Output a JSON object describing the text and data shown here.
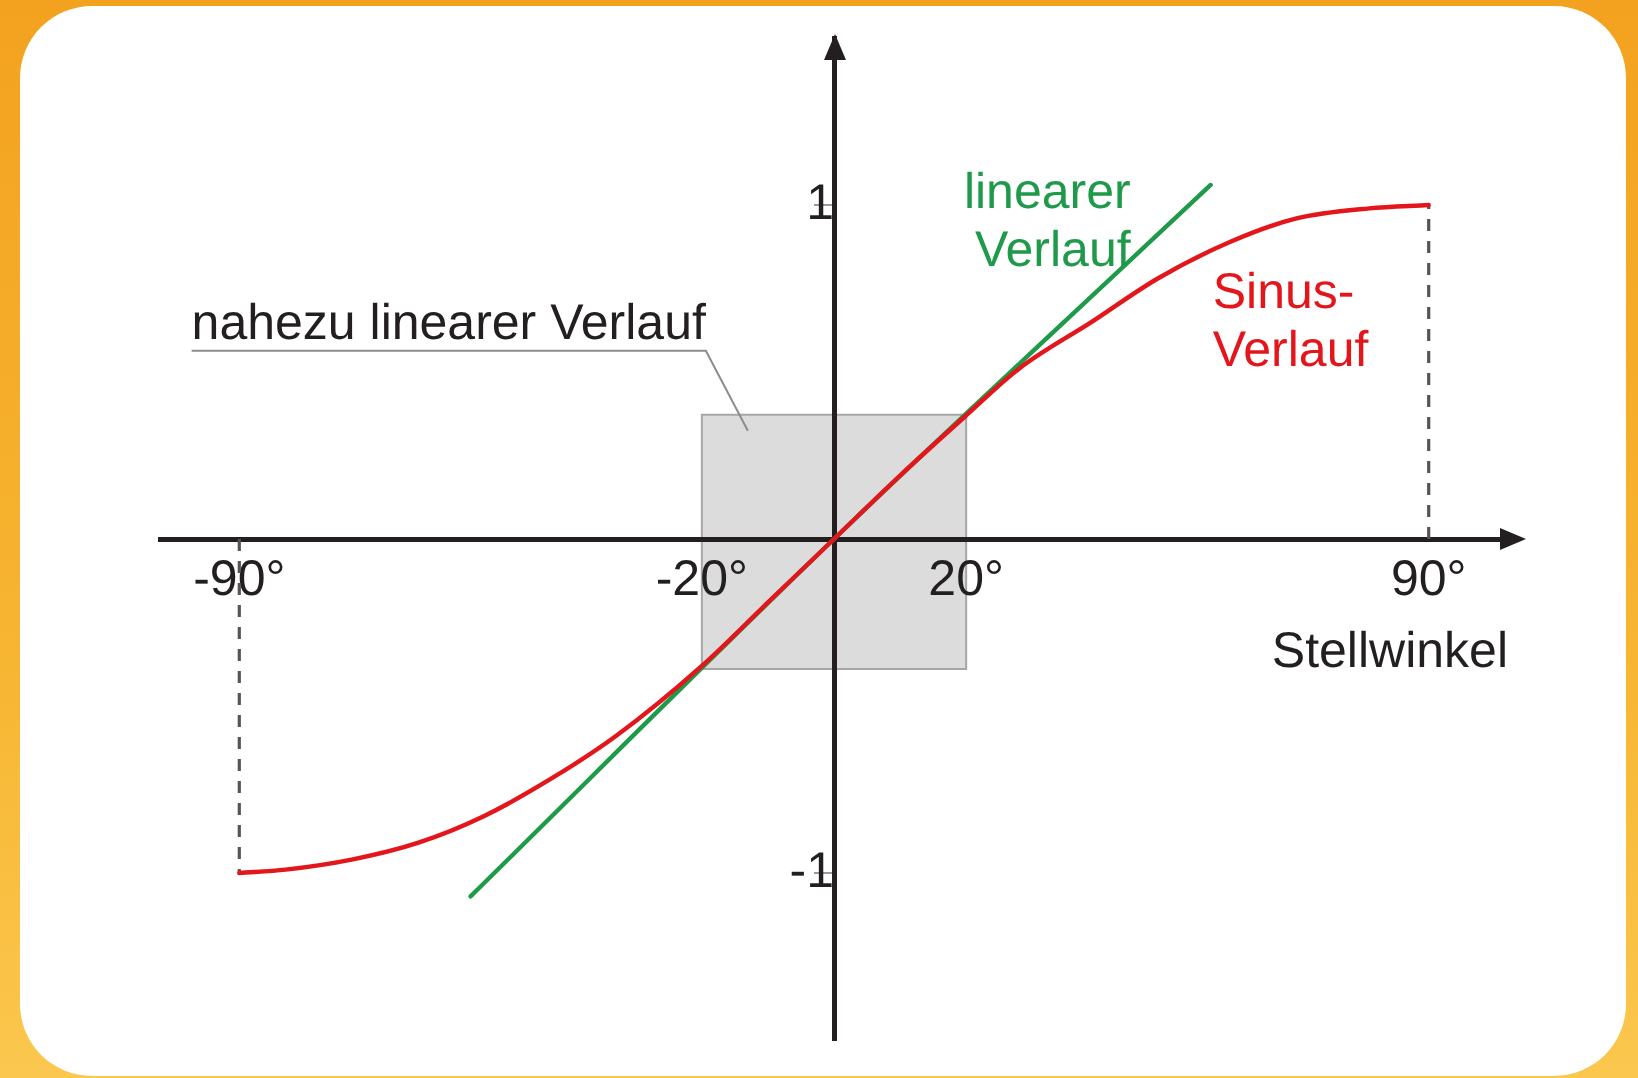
{
  "chart_data": {
    "type": "line",
    "xlabel": "Stellwinkel",
    "xlim": [
      -102,
      102
    ],
    "xticks": [
      {
        "value": -90,
        "label": "-90°"
      },
      {
        "value": -20,
        "label": "-20°"
      },
      {
        "value": 20,
        "label": "20°"
      },
      {
        "value": 90,
        "label": "90°"
      }
    ],
    "ylim": [
      -1.5,
      1.5
    ],
    "yticks": [
      -1,
      1
    ],
    "series": [
      {
        "name": "Sinus-Verlauf",
        "color": "#e3161b",
        "x": [
          -90,
          -83,
          -73,
          -63,
          -53,
          -43,
          -33,
          -20,
          -10,
          0,
          10,
          20,
          28,
          39,
          49,
          60,
          70,
          81,
          90
        ],
        "values": [
          -1,
          -0.99,
          -0.96,
          -0.91,
          -0.83,
          -0.72,
          -0.59,
          -0.38,
          -0.19,
          0,
          0.19,
          0.37,
          0.51,
          0.65,
          0.78,
          0.89,
          0.96,
          0.99,
          1
        ]
      },
      {
        "name": "linearer Verlauf",
        "color": "#1f9a4a",
        "x": [
          -55,
          0,
          57
        ],
        "values": [
          -1.07,
          0,
          1.06
        ]
      }
    ],
    "bands": [
      {
        "axis": "x",
        "from": -20,
        "to": 20,
        "label": "nahezu linearer Verlauf",
        "color": "#dcdcdc"
      }
    ],
    "ref_lines": [
      {
        "axis": "x",
        "value": -90,
        "color": "#555555",
        "line_style": "dashed"
      },
      {
        "axis": "x",
        "value": 90,
        "color": "#555555",
        "line_style": "dashed"
      }
    ],
    "grid": false,
    "legend": false,
    "marker": "none",
    "line_style": "solid"
  }
}
